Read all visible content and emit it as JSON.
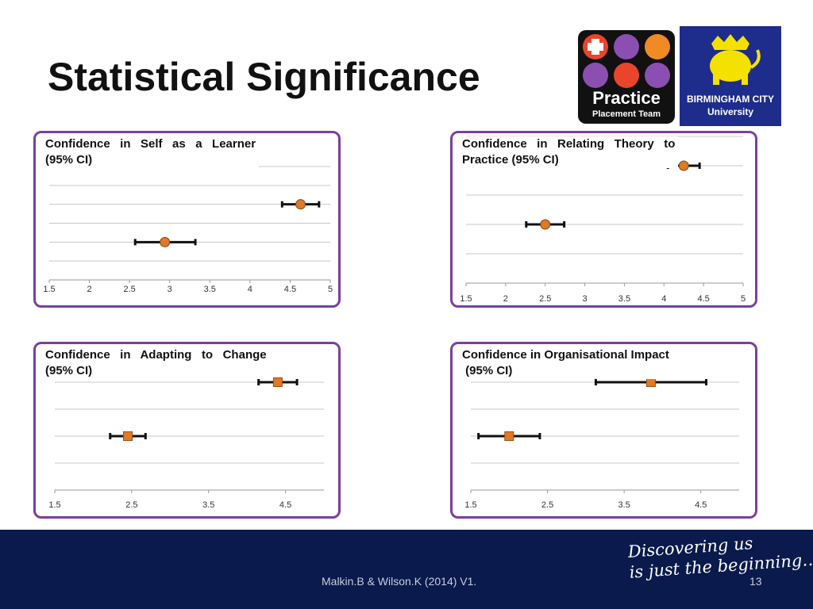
{
  "title": "Statistical Significance",
  "logos": {
    "practice": {
      "line1": "Practice",
      "line2": "Placement Team"
    },
    "university": {
      "line1": "BIRMINGHAM CITY",
      "line2": "University"
    }
  },
  "footer": {
    "credit": "Malkin.B & Wilson.K (2014) V1.",
    "page_number": "13",
    "tagline_line1": "Discovering us",
    "tagline_line2": "is just the beginning…"
  },
  "colors": {
    "panel_border": "#7a3fa0",
    "marker": "#e07a24",
    "footer_bg": "#0a1a4c"
  },
  "chart_data": [
    {
      "type": "scatter",
      "title": "Confidence in Self as a Learner (95% CI)",
      "title_line1": "Confidence   in   Self   as   a   Learner",
      "title_line2": "(95% CI)",
      "marker": "circle",
      "error_bars": true,
      "xlim": [
        1.5,
        5
      ],
      "xticks": [
        "1.5",
        "2",
        "2.5",
        "3",
        "3.5",
        "4",
        "4.5",
        "5"
      ],
      "rows": 6,
      "points": [
        {
          "row": 2,
          "x": 4.63,
          "ci_low": 4.4,
          "ci_high": 4.86
        },
        {
          "row": 4,
          "x": 2.94,
          "ci_low": 2.57,
          "ci_high": 3.32
        }
      ]
    },
    {
      "type": "scatter",
      "title": "Confidence in Relating Theory to Practice (95% CI)",
      "title_line1": "Confidence   in   Relating   Theory   to",
      "title_line2": "Practice (95% CI)",
      "marker": "circle",
      "error_bars": true,
      "xlim": [
        1.5,
        5
      ],
      "xticks": [
        "1.5",
        "2",
        "2.5",
        "3",
        "3.5",
        "4",
        "4.5",
        "5"
      ],
      "rows": 5,
      "points": [
        {
          "row": 1,
          "x": 4.25,
          "ci_low": 4.05,
          "ci_high": 4.45
        },
        {
          "row": 3,
          "x": 2.5,
          "ci_low": 2.26,
          "ci_high": 2.74
        }
      ]
    },
    {
      "type": "scatter",
      "title": "Confidence in Adapting to Change (95% CI)",
      "title_line1": "Confidence   in   Adapting   to   Change",
      "title_line2": "(95% CI)",
      "marker": "square",
      "error_bars": true,
      "xlim": [
        1.5,
        5
      ],
      "xticks": [
        "1.5",
        "2.5",
        "3.5",
        "4.5"
      ],
      "rows": 4,
      "points": [
        {
          "row": 0,
          "x": 4.4,
          "ci_low": 4.15,
          "ci_high": 4.65
        },
        {
          "row": 2,
          "x": 2.45,
          "ci_low": 2.22,
          "ci_high": 2.68
        }
      ]
    },
    {
      "type": "scatter",
      "title": "Confidence in Organisational Impact (95% CI)",
      "title_line1": "Confidence in Organisational Impact",
      "title_line2": " (95% CI)",
      "marker": "square",
      "error_bars": true,
      "xlim": [
        1.5,
        5
      ],
      "xticks": [
        "1.5",
        "2.5",
        "3.5",
        "4.5"
      ],
      "rows": 4,
      "points": [
        {
          "row": 0,
          "x": 3.85,
          "ci_low": 3.13,
          "ci_high": 4.57
        },
        {
          "row": 2,
          "x": 2.0,
          "ci_low": 1.6,
          "ci_high": 2.4
        }
      ]
    }
  ]
}
